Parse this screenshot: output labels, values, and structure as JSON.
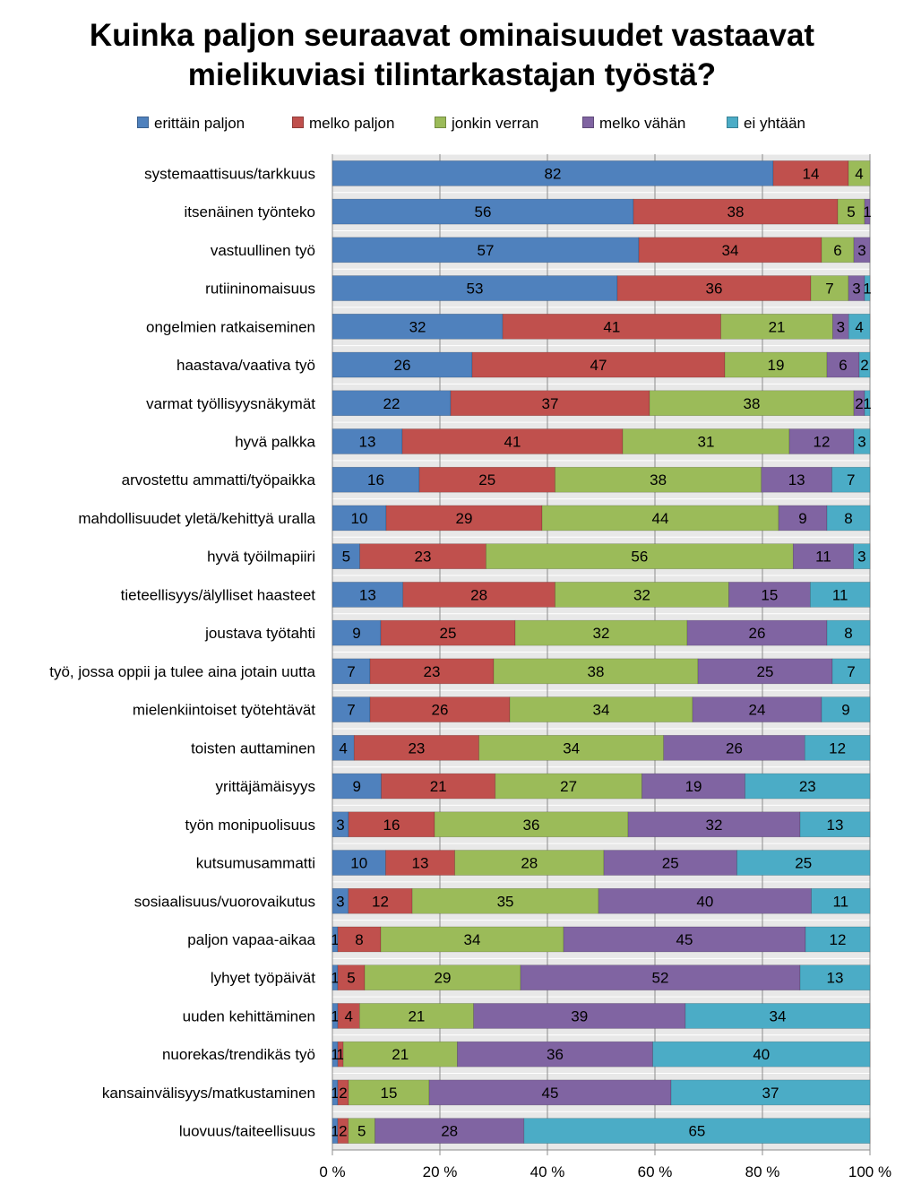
{
  "title_lines": [
    "Kuinka paljon seuraavat ominaisuudet vastaavat",
    "mielikuviasi tilintarkastajan työstä?"
  ],
  "chart_data": {
    "type": "bar",
    "orientation": "horizontal",
    "stacked": "percent",
    "title": "Kuinka paljon seuraavat ominaisuudet vastaavat mielikuviasi tilintarkastajan työstä?",
    "xlabel": "",
    "ylabel": "",
    "xlim": [
      0,
      100
    ],
    "x_ticks": [
      "0 %",
      "20 %",
      "40 %",
      "60 %",
      "80 %",
      "100 %"
    ],
    "grid": "vertical",
    "legend_position": "top",
    "categories": [
      "systemaattisuus/tarkkuus",
      "itsenäinen työnteko",
      "vastuullinen työ",
      "rutiininomaisuus",
      "ongelmien ratkaiseminen",
      "haastava/vaativa työ",
      "varmat työllisyysnäkymät",
      "hyvä palkka",
      "arvostettu ammatti/työpaikka",
      "mahdollisuudet yletä/kehittyä uralla",
      "hyvä työilmapiiri",
      "tieteellisyys/älylliset haasteet",
      "joustava työtahti",
      "työ, jossa oppii ja tulee aina jotain uutta",
      "mielenkiintoiset työtehtävät",
      "toisten auttaminen",
      "yrittäjämäisyys",
      "työn monipuolisuus",
      "kutsumusammatti",
      "sosiaalisuus/vuorovaikutus",
      "paljon vapaa-aikaa",
      "lyhyet työpäivät",
      "uuden kehittäminen",
      "nuorekas/trendikäs työ",
      "kansainvälisyys/matkustaminen",
      "luovuus/taiteellisuus"
    ],
    "series": [
      {
        "name": "erittäin paljon",
        "color": "#4f81bd",
        "values": [
          82,
          56,
          57,
          53,
          32,
          26,
          22,
          13,
          16,
          10,
          5,
          13,
          9,
          7,
          7,
          4,
          9,
          3,
          10,
          3,
          1,
          1,
          1,
          1,
          1,
          1
        ]
      },
      {
        "name": "melko paljon",
        "color": "#c0504d",
        "values": [
          14,
          38,
          34,
          36,
          41,
          47,
          37,
          41,
          25,
          29,
          23,
          28,
          25,
          23,
          26,
          23,
          21,
          16,
          13,
          12,
          8,
          5,
          4,
          1,
          2,
          2
        ]
      },
      {
        "name": "jonkin verran",
        "color": "#9bbb59",
        "values": [
          4,
          5,
          6,
          7,
          21,
          19,
          38,
          31,
          38,
          44,
          56,
          32,
          32,
          38,
          34,
          34,
          27,
          36,
          28,
          35,
          34,
          29,
          21,
          21,
          15,
          5
        ]
      },
      {
        "name": "melko vähän",
        "color": "#8064a2",
        "values": [
          0,
          1,
          3,
          3,
          3,
          6,
          2,
          12,
          13,
          9,
          11,
          15,
          26,
          25,
          24,
          26,
          19,
          32,
          25,
          40,
          45,
          52,
          39,
          36,
          45,
          28
        ]
      },
      {
        "name": "ei yhtään",
        "color": "#4bacc6",
        "values": [
          0,
          0,
          0,
          1,
          4,
          2,
          1,
          3,
          7,
          8,
          3,
          11,
          8,
          7,
          9,
          12,
          23,
          13,
          25,
          11,
          12,
          13,
          34,
          40,
          37,
          65
        ]
      }
    ]
  }
}
